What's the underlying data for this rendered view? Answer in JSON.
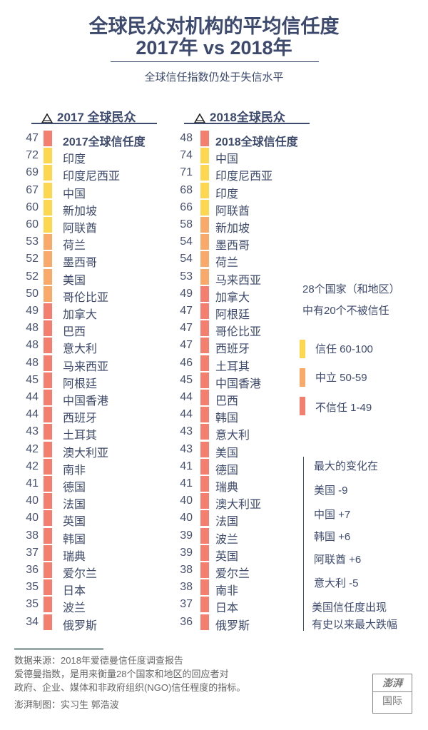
{
  "title_line1": "全球民众对机构的平均信任度",
  "title_line2": "2017年 vs 2018年",
  "subtitle": "全球信任指数仍处于失信水平",
  "colors": {
    "trust": "#fcd74f",
    "neutral": "#f9a96a",
    "distrust": "#f47f6e"
  },
  "chart_data": [
    {
      "type": "bar",
      "header": "2017 全球民众",
      "categories": [
        "2017全球信任度",
        "印度",
        "印度尼西亚",
        "中国",
        "新加坡",
        "阿联酋",
        "荷兰",
        "墨西哥",
        "美国",
        "哥伦比亚",
        "加拿大",
        "巴西",
        "意大利",
        "马来西亚",
        "阿根廷",
        "中国香港",
        "西班牙",
        "土耳其",
        "澳大利亚",
        "南非",
        "德国",
        "法国",
        "英国",
        "韩国",
        "瑞典",
        "爱尔兰",
        "日本",
        "波兰",
        "俄罗斯"
      ],
      "values": [
        47,
        72,
        69,
        67,
        60,
        60,
        53,
        52,
        52,
        50,
        49,
        48,
        48,
        48,
        45,
        44,
        44,
        43,
        42,
        42,
        41,
        40,
        40,
        38,
        37,
        36,
        35,
        35,
        34
      ]
    },
    {
      "type": "bar",
      "header": "2018全球民众",
      "categories": [
        "2018全球信任度",
        "中国",
        "印度尼西亚",
        "印度",
        "阿联酋",
        "新加坡",
        "墨西哥",
        "荷兰",
        "马来西亚",
        "加拿大",
        "阿根廷",
        "哥伦比亚",
        "西班牙",
        "土耳其",
        "中国香港",
        "巴西",
        "韩国",
        "意大利",
        "美国",
        "德国",
        "瑞典",
        "澳大利亚",
        "法国",
        "波兰",
        "英国",
        "爱尔兰",
        "南非",
        "日本",
        "俄罗斯"
      ],
      "values": [
        48,
        74,
        71,
        68,
        66,
        58,
        54,
        54,
        53,
        49,
        47,
        47,
        47,
        46,
        45,
        44,
        44,
        43,
        43,
        41,
        41,
        40,
        40,
        39,
        39,
        38,
        38,
        37,
        36
      ]
    }
  ],
  "note1": [
    "28个国家（和地区）",
    "中有20个不被信任"
  ],
  "legend": [
    {
      "label": "信任 60-100"
    },
    {
      "label": "中立 50-59"
    },
    {
      "label": "不信任 1-49"
    }
  ],
  "changes_title": "最大的变化在",
  "changes": [
    "美国 -9",
    "中国 +7",
    "韩国 +6",
    "阿联酋 +6",
    "意大利 -5"
  ],
  "changes_note": [
    "美国信任度出现",
    "有史以来最大跌幅"
  ],
  "footer": [
    "数据来源：2018年爱德曼信任度调查报告",
    "爱德曼指数，是用来衡量28个国家和地区的回应者对",
    "政府、企业、媒体和非政府组织(NGO)信任程度的指标。",
    "澎湃制图：实习生 郭浩波"
  ],
  "logo": [
    "澎湃",
    "国际"
  ]
}
